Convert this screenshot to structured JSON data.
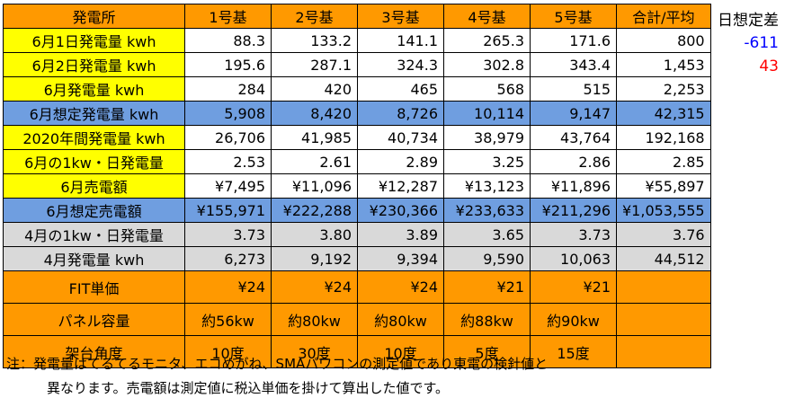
{
  "colors": {
    "orange": "#ff9900",
    "yellow": "#ffff00",
    "blue": "#6f9ee0",
    "gray": "#d9d9d9",
    "white": "#ffffff",
    "negative": "#0000ff",
    "positive": "#ff0000"
  },
  "header": [
    "発電所",
    "1号基",
    "2号基",
    "3号基",
    "4号基",
    "5号基",
    "合計/平均"
  ],
  "rows": [
    {
      "label": "6月1日発電量 kwh",
      "style": "yellow",
      "cells": [
        "88.3",
        "133.2",
        "141.1",
        "265.3",
        "171.6",
        "800"
      ]
    },
    {
      "label": "6月2日発電量 kwh",
      "style": "yellow",
      "cells": [
        "195.6",
        "287.1",
        "324.3",
        "302.8",
        "343.4",
        "1,453"
      ]
    },
    {
      "label": "6月発電量 kwh",
      "style": "yellow",
      "cells": [
        "284",
        "420",
        "465",
        "568",
        "515",
        "2,253"
      ]
    },
    {
      "label": "6月想定発電量 kwh",
      "style": "blue",
      "cells": [
        "5,908",
        "8,420",
        "8,726",
        "10,114",
        "9,147",
        "42,315"
      ]
    },
    {
      "label": "2020年間発電量 kwh",
      "style": "yellow",
      "cells": [
        "26,706",
        "41,985",
        "40,734",
        "38,979",
        "43,764",
        "192,168"
      ]
    },
    {
      "label": "6月の1kw・日発電量",
      "style": "yellow",
      "cells": [
        "2.53",
        "2.61",
        "2.89",
        "3.25",
        "2.86",
        "2.85"
      ]
    },
    {
      "label": "6月売電額",
      "style": "yellow",
      "cells": [
        "¥7,495",
        "¥11,096",
        "¥12,287",
        "¥13,123",
        "¥11,896",
        "¥55,897"
      ]
    },
    {
      "label": "6月想定売電額",
      "style": "blue",
      "cells": [
        "¥155,971",
        "¥222,288",
        "¥230,366",
        "¥233,633",
        "¥211,296",
        "¥1,053,555"
      ]
    },
    {
      "label": "4月の1kw・日発電量",
      "style": "gray",
      "cells": [
        "3.73",
        "3.80",
        "3.89",
        "3.65",
        "3.73",
        "3.76"
      ]
    },
    {
      "label": "4月発電量 kwh",
      "style": "gray",
      "cells": [
        "6,273",
        "9,192",
        "9,394",
        "9,590",
        "10,063",
        "44,512"
      ]
    },
    {
      "label": "FIT単価",
      "style": "orange",
      "cells": [
        "¥24",
        "¥24",
        "¥24",
        "¥21",
        "¥21",
        ""
      ]
    },
    {
      "label": "パネル容量",
      "style": "orange",
      "cells": [
        "約56kw",
        "約80kw",
        "約80kw",
        "約88kw",
        "約90kw",
        ""
      ]
    },
    {
      "label": "架台角度",
      "style": "orange",
      "cells": [
        "10度",
        "30度",
        "10度",
        "5度",
        "15度",
        ""
      ]
    }
  ],
  "side_panel": {
    "title": "日想定差",
    "values": [
      {
        "text": "-611",
        "color": "#0000ff"
      },
      {
        "text": "43",
        "color": "#ff0000"
      }
    ]
  },
  "note": {
    "line1": "注：発電量はてるてるモニタ、エコめがね、SMAパワコンの測定値であり東電の検針値と",
    "line2": "異なります。売電額は測定値に税込単価を掛けて算出した値です。"
  }
}
